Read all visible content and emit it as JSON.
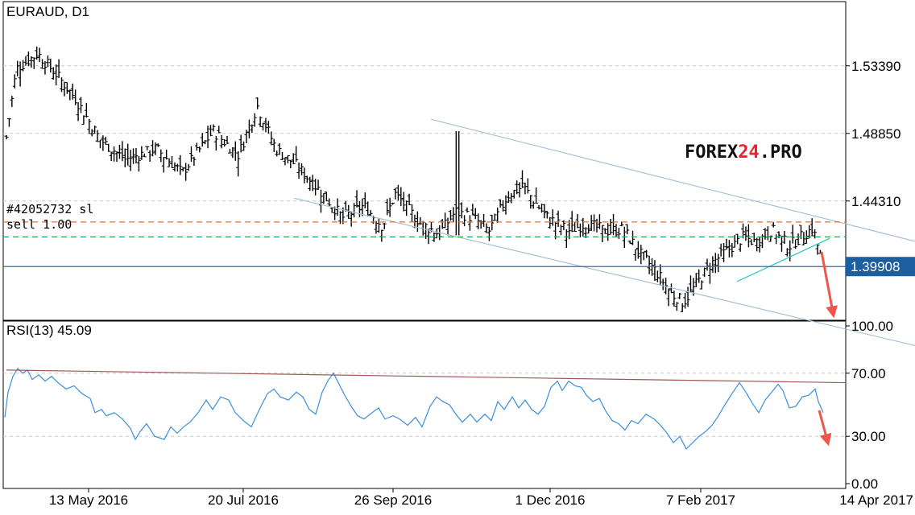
{
  "chart_data": [
    {
      "type": "bar",
      "subtype": "ohlc",
      "title": "EURAUD, D1",
      "y_ticks": [
        "1.53390",
        "1.48850",
        "1.44310"
      ],
      "y_tick_values": [
        1.5339,
        1.4885,
        1.4431
      ],
      "ylim": [
        1.363,
        1.577
      ],
      "x_ticks": [
        "13 May 2016",
        "20 Jul 2016",
        "26 Sep 2016",
        "1 Dec 2016",
        "7 Feb 2017",
        "14 Apr 2017"
      ],
      "current_price": "1.39908",
      "current_price_value": 1.39908,
      "order_label_1": "#42052732 sl",
      "order_label_2": "sell 1.00",
      "sl_level": 1.429,
      "entry_level": 1.419,
      "close_trend": [
        [
          0,
          1.486
        ],
        [
          8,
          1.532
        ],
        [
          25,
          1.542
        ],
        [
          40,
          1.528
        ],
        [
          55,
          1.512
        ],
        [
          75,
          1.484
        ],
        [
          95,
          1.471
        ],
        [
          120,
          1.478
        ],
        [
          140,
          1.462
        ],
        [
          165,
          1.49
        ],
        [
          185,
          1.474
        ],
        [
          200,
          1.507
        ],
        [
          215,
          1.478
        ],
        [
          230,
          1.468
        ],
        [
          250,
          1.45
        ],
        [
          268,
          1.432
        ],
        [
          285,
          1.44
        ],
        [
          300,
          1.426
        ],
        [
          310,
          1.448
        ],
        [
          330,
          1.428
        ],
        [
          345,
          1.421
        ],
        [
          358,
          1.436
        ],
        [
          372,
          1.432
        ],
        [
          385,
          1.423
        ],
        [
          400,
          1.447
        ],
        [
          412,
          1.453
        ],
        [
          430,
          1.433
        ],
        [
          448,
          1.423
        ],
        [
          462,
          1.428
        ],
        [
          478,
          1.423
        ],
        [
          492,
          1.424
        ],
        [
          505,
          1.408
        ],
        [
          518,
          1.396
        ],
        [
          530,
          1.381
        ],
        [
          540,
          1.375
        ],
        [
          550,
          1.387
        ],
        [
          562,
          1.401
        ],
        [
          575,
          1.41
        ],
        [
          588,
          1.419
        ],
        [
          598,
          1.415
        ],
        [
          610,
          1.424
        ],
        [
          624,
          1.413
        ],
        [
          634,
          1.419
        ],
        [
          643,
          1.425
        ],
        [
          650,
          1.404
        ]
      ],
      "resistance_line": [
        [
          535,
          1.498
        ],
        [
          1136,
          1.416
        ]
      ],
      "support_line": [
        [
          365,
          1.445
        ],
        [
          1136,
          1.346
        ]
      ],
      "wedge_line": [
        [
          915,
          1.389
        ],
        [
          1030,
          1.418
        ]
      ],
      "annotation": "arrow-down",
      "logo": [
        "FOREX",
        "24",
        ".PRO"
      ],
      "colors": {
        "candles": "#000000",
        "channel": "#a7bfd6",
        "wedge": "#1fc8bc",
        "sl_line": "#e0703a",
        "entry_line": "#28a745",
        "price_line": "#2f6fb5",
        "price_tag_bg": "#1d5e9e",
        "arrow": "#f0554a",
        "logo_accent": "#e8232a"
      }
    },
    {
      "type": "line",
      "title": "RSI(13) 45.09",
      "y_ticks": [
        "100.00",
        "70.00",
        "30.00",
        "0.00"
      ],
      "y_tick_values": [
        100,
        70,
        30,
        0
      ],
      "ylim": [
        0,
        100
      ],
      "levels": [
        70,
        30
      ],
      "values": [
        [
          0,
          42
        ],
        [
          4,
          58
        ],
        [
          10,
          68
        ],
        [
          16,
          73
        ],
        [
          22,
          70
        ],
        [
          28,
          72
        ],
        [
          34,
          66
        ],
        [
          42,
          69
        ],
        [
          50,
          65
        ],
        [
          58,
          68
        ],
        [
          66,
          64
        ],
        [
          76,
          60
        ],
        [
          86,
          62
        ],
        [
          96,
          57
        ],
        [
          106,
          54
        ],
        [
          112,
          45
        ],
        [
          120,
          47
        ],
        [
          126,
          43
        ],
        [
          136,
          45
        ],
        [
          146,
          41
        ],
        [
          156,
          35
        ],
        [
          162,
          28
        ],
        [
          168,
          33
        ],
        [
          176,
          38
        ],
        [
          186,
          30
        ],
        [
          198,
          28
        ],
        [
          206,
          36
        ],
        [
          214,
          32
        ],
        [
          222,
          36
        ],
        [
          230,
          39
        ],
        [
          240,
          45
        ],
        [
          250,
          53
        ],
        [
          258,
          47
        ],
        [
          268,
          55
        ],
        [
          278,
          53
        ],
        [
          286,
          45
        ],
        [
          296,
          40
        ],
        [
          306,
          36
        ],
        [
          316,
          47
        ],
        [
          326,
          57
        ],
        [
          334,
          60
        ],
        [
          342,
          55
        ],
        [
          352,
          53
        ],
        [
          362,
          58
        ],
        [
          370,
          55
        ],
        [
          378,
          47
        ],
        [
          386,
          44
        ],
        [
          394,
          58
        ],
        [
          402,
          66
        ],
        [
          408,
          70
        ],
        [
          416,
          62
        ],
        [
          422,
          56
        ],
        [
          430,
          49
        ],
        [
          438,
          43
        ],
        [
          446,
          41
        ],
        [
          456,
          45
        ],
        [
          464,
          48
        ],
        [
          472,
          41
        ],
        [
          482,
          43
        ],
        [
          490,
          41
        ],
        [
          500,
          37
        ],
        [
          510,
          42
        ],
        [
          518,
          36
        ],
        [
          528,
          49
        ],
        [
          536,
          55
        ],
        [
          544,
          52
        ],
        [
          552,
          50
        ],
        [
          560,
          44
        ],
        [
          568,
          39
        ],
        [
          578,
          44
        ],
        [
          586,
          39
        ],
        [
          596,
          44
        ],
        [
          604,
          40
        ],
        [
          612,
          52
        ],
        [
          620,
          47
        ],
        [
          630,
          55
        ],
        [
          638,
          48
        ],
        [
          646,
          53
        ],
        [
          654,
          47
        ],
        [
          662,
          44
        ],
        [
          670,
          49
        ],
        [
          678,
          61
        ],
        [
          686,
          65
        ],
        [
          692,
          59
        ],
        [
          700,
          65
        ],
        [
          708,
          62
        ],
        [
          716,
          61
        ],
        [
          722,
          56
        ],
        [
          730,
          52
        ],
        [
          738,
          54
        ],
        [
          746,
          46
        ],
        [
          754,
          40
        ],
        [
          762,
          38
        ],
        [
          770,
          34
        ],
        [
          778,
          40
        ],
        [
          786,
          38
        ],
        [
          796,
          44
        ],
        [
          806,
          41
        ],
        [
          814,
          37
        ],
        [
          822,
          32
        ],
        [
          830,
          26
        ],
        [
          838,
          30
        ],
        [
          846,
          22
        ],
        [
          854,
          26
        ],
        [
          862,
          30
        ],
        [
          870,
          33
        ],
        [
          878,
          37
        ],
        [
          886,
          43
        ],
        [
          894,
          50
        ],
        [
          904,
          58
        ],
        [
          912,
          64
        ],
        [
          920,
          58
        ],
        [
          928,
          51
        ],
        [
          936,
          45
        ],
        [
          944,
          53
        ],
        [
          952,
          58
        ],
        [
          960,
          63
        ],
        [
          966,
          59
        ],
        [
          974,
          48
        ],
        [
          982,
          49
        ],
        [
          990,
          55
        ],
        [
          998,
          56
        ],
        [
          1006,
          60
        ],
        [
          1010,
          52
        ],
        [
          1016,
          45
        ]
      ],
      "trend_line": [
        [
          8,
          72
        ],
        [
          1050,
          64
        ]
      ],
      "annotation": "arrow-down",
      "colors": {
        "line": "#3a8fd9",
        "trend": "#9b5a54",
        "arrow": "#f0554a"
      }
    }
  ]
}
